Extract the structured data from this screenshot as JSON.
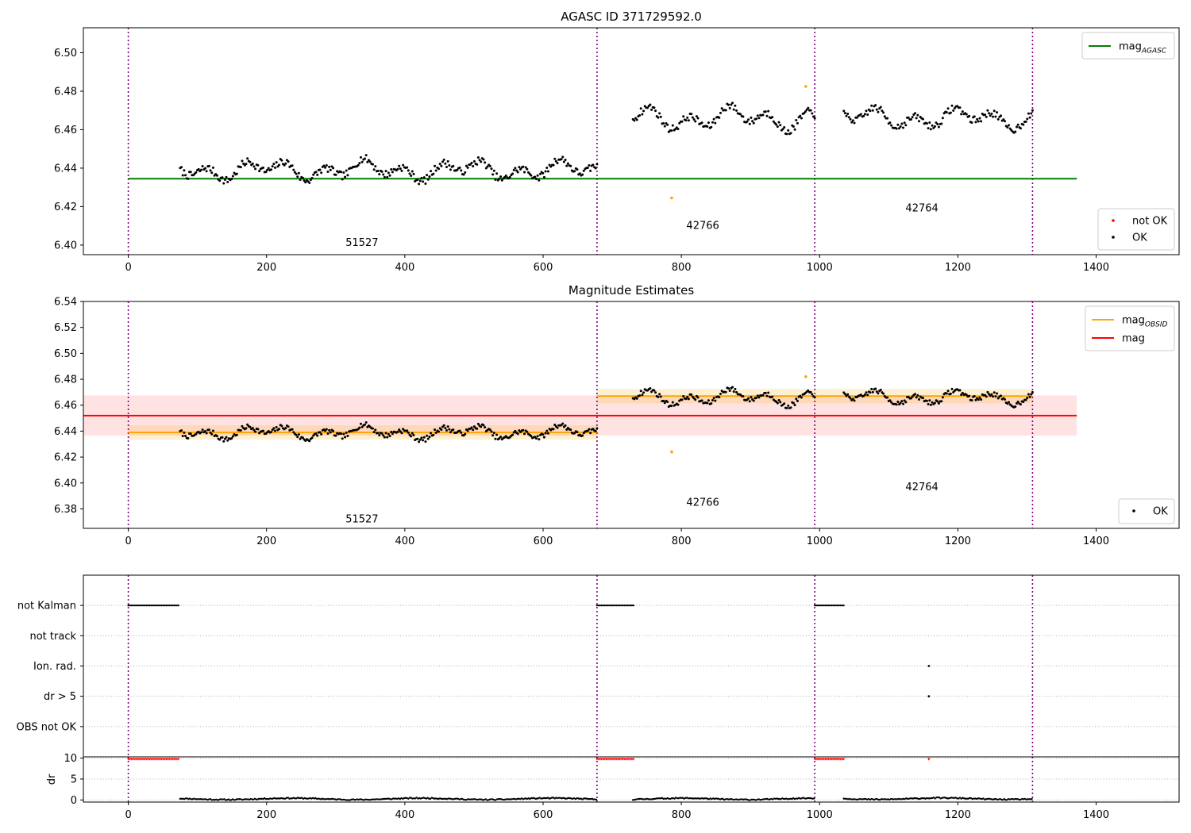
{
  "chart_data": [
    {
      "type": "scatter",
      "title": "AGASC ID 371729592.0",
      "xlim": [
        -65,
        1520
      ],
      "ylim": [
        6.395,
        6.513
      ],
      "xticks": [
        0,
        200,
        400,
        600,
        800,
        1000,
        1200,
        1400
      ],
      "yticks": [
        6.4,
        6.42,
        6.44,
        6.46,
        6.48,
        6.5
      ],
      "ytick_decimals": 2,
      "grid": false,
      "obsid_boundaries": [
        0,
        678,
        993,
        1308
      ],
      "obsid_labels": [
        {
          "text": "51527",
          "x": 338,
          "y": 6.3995
        },
        {
          "text": "42766",
          "x": 831,
          "y": 6.4085
        },
        {
          "text": "42764",
          "x": 1148,
          "y": 6.4175
        }
      ],
      "lines": [
        {
          "name": "mag_AGASC",
          "color": "#008000",
          "x": [
            0,
            1372
          ],
          "y": [
            6.4345,
            6.4345
          ]
        }
      ],
      "segments": [
        {
          "x0": 75,
          "x1": 678,
          "base": 6.439,
          "amp": 0.006,
          "noise": 0.004
        },
        {
          "x0": 730,
          "x1": 993,
          "base": 6.466,
          "amp": 0.007,
          "noise": 0.004
        },
        {
          "x0": 1035,
          "x1": 1308,
          "base": 6.466,
          "amp": 0.006,
          "noise": 0.004
        }
      ],
      "outliers": [
        {
          "x": 786,
          "y": 6.4245,
          "color": "#ffa500"
        },
        {
          "x": 980,
          "y": 6.4825,
          "color": "#ffa500"
        }
      ],
      "legend_top": {
        "position": "upper-right",
        "entries": [
          {
            "label": "mag",
            "sub": "AGASC",
            "color": "#008000"
          }
        ]
      },
      "legend_bottom": {
        "position": "lower-right",
        "entries": [
          {
            "label": "not OK",
            "color": "#ff0000"
          },
          {
            "label": "OK",
            "color": "#000000"
          }
        ]
      }
    },
    {
      "type": "scatter",
      "title": "Magnitude Estimates",
      "xlim": [
        -65,
        1520
      ],
      "ylim": [
        6.365,
        6.54
      ],
      "xticks": [
        0,
        200,
        400,
        600,
        800,
        1000,
        1200,
        1400
      ],
      "yticks": [
        6.38,
        6.4,
        6.42,
        6.44,
        6.46,
        6.48,
        6.5,
        6.52,
        6.54
      ],
      "ytick_decimals": 2,
      "grid": false,
      "obsid_boundaries": [
        0,
        678,
        993,
        1308
      ],
      "obsid_labels": [
        {
          "text": "51527",
          "x": 338,
          "y": 6.3695
        },
        {
          "text": "42766",
          "x": 831,
          "y": 6.3825
        },
        {
          "text": "42764",
          "x": 1148,
          "y": 6.3945
        }
      ],
      "bands": [
        {
          "x": [
            -65,
            1372
          ],
          "y": [
            6.4365,
            6.4675
          ],
          "color": "#ff0000",
          "opacity": 0.11
        },
        {
          "x": [
            0,
            678
          ],
          "y": [
            6.4335,
            6.4445
          ],
          "color": "#ffa500",
          "opacity": 0.18
        },
        {
          "x": [
            678,
            1308
          ],
          "y": [
            6.4615,
            6.4725
          ],
          "color": "#ffa500",
          "opacity": 0.18
        }
      ],
      "lines": [
        {
          "name": "mag",
          "color": "#ff0000",
          "x": [
            -65,
            1372
          ],
          "y": [
            6.452,
            6.452
          ]
        },
        {
          "name": "mag_OBSID 51527",
          "color": "#ffa500",
          "x": [
            0,
            678
          ],
          "y": [
            6.439,
            6.439
          ]
        },
        {
          "name": "mag_OBSID 42766/42764",
          "color": "#ffa500",
          "x": [
            678,
            1308
          ],
          "y": [
            6.467,
            6.467
          ]
        }
      ],
      "segments": [
        {
          "x0": 75,
          "x1": 678,
          "base": 6.439,
          "amp": 0.006,
          "noise": 0.004
        },
        {
          "x0": 730,
          "x1": 993,
          "base": 6.466,
          "amp": 0.007,
          "noise": 0.004
        },
        {
          "x0": 1035,
          "x1": 1308,
          "base": 6.466,
          "amp": 0.006,
          "noise": 0.004
        }
      ],
      "outliers": [
        {
          "x": 786,
          "y": 6.424,
          "color": "#ffa500"
        },
        {
          "x": 980,
          "y": 6.482,
          "color": "#ffa500"
        }
      ],
      "legend_top": {
        "position": "upper-right",
        "entries": [
          {
            "label": "mag",
            "sub": "OBSID",
            "color": "#ffa500"
          },
          {
            "label": "mag",
            "sub": "",
            "color": "#ff0000"
          }
        ]
      },
      "legend_bottom": {
        "position": "lower-right",
        "entries": [
          {
            "label": "OK",
            "color": "#000000"
          }
        ]
      }
    },
    {
      "type": "scatter",
      "title": "",
      "xlim": [
        -65,
        1520
      ],
      "categories": [
        "not Kalman",
        "not track",
        "Ion. rad.",
        "dr > 5",
        "OBS not OK"
      ],
      "flag_runs": [
        {
          "category": "not Kalman",
          "x0": 0,
          "x1": 74
        },
        {
          "category": "not Kalman",
          "x0": 678,
          "x1": 732
        },
        {
          "category": "not Kalman",
          "x0": 993,
          "x1": 1035
        }
      ],
      "flag_points": [
        {
          "category": "Ion. rad.",
          "x": 1158
        },
        {
          "category": "dr > 5",
          "x": 1158
        }
      ],
      "obsid_boundaries": [
        0,
        678,
        993,
        1308
      ]
    },
    {
      "type": "scatter",
      "title": "",
      "ylabel": "dr",
      "xlim": [
        -65,
        1520
      ],
      "ylim": [
        -0.5,
        10.3
      ],
      "xticks": [
        0,
        200,
        400,
        600,
        800,
        1000,
        1200,
        1400
      ],
      "yticks": [
        0,
        5,
        10
      ],
      "ytick_decimals": 0,
      "ok_segments": [
        {
          "x0": 75,
          "x1": 678,
          "y": 0.25
        },
        {
          "x0": 730,
          "x1": 993,
          "y": 0.25
        },
        {
          "x0": 1035,
          "x1": 1308,
          "y": 0.3
        }
      ],
      "capped_runs": [
        {
          "x0": 0,
          "x1": 74,
          "y": 9.7
        },
        {
          "x0": 678,
          "x1": 732,
          "y": 9.7
        },
        {
          "x0": 993,
          "x1": 1035,
          "y": 9.7
        }
      ],
      "capped_points": [
        {
          "x": 1158,
          "y": 9.7
        }
      ],
      "obsid_boundaries": [
        0,
        678,
        993,
        1308
      ]
    }
  ]
}
